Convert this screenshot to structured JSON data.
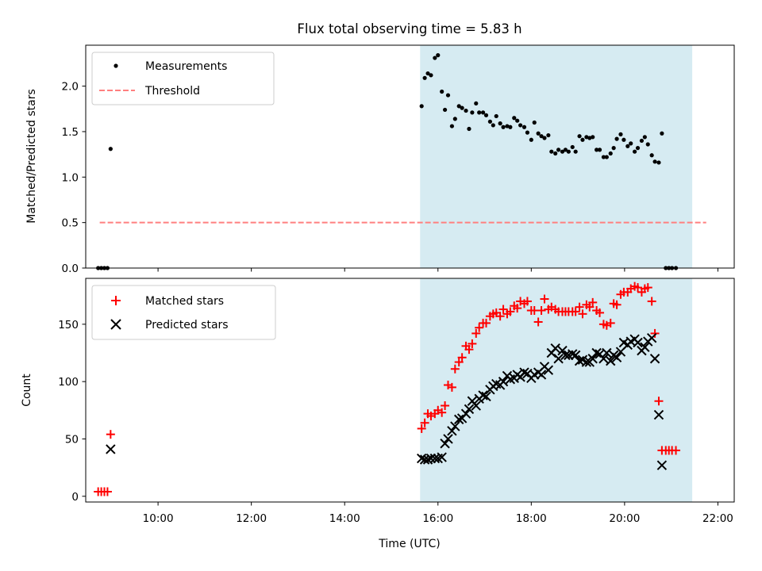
{
  "chart_data": [
    {
      "type": "scatter",
      "title": "Flux total observing time = 5.83 h",
      "ylabel": "Matched/Predicted stars",
      "xlim": [
        "08:27",
        "22:21"
      ],
      "ylim": [
        0,
        2.45
      ],
      "yticks": [
        "0.0",
        "0.5",
        "1.0",
        "1.5",
        "2.0"
      ],
      "grid": false,
      "legend_position": "top-left",
      "highlight_span": {
        "start": "15:37",
        "end": "21:27",
        "color": "#add8e6"
      },
      "threshold": {
        "name": "Threshold",
        "value": 0.5,
        "x_start": "08:45",
        "x_end": "21:45",
        "color": "#ff7f7f"
      },
      "series": [
        {
          "name": "Measurements",
          "color": "#000000",
          "marker": "dot",
          "points": [
            [
              "08:43",
              0
            ],
            [
              "08:47",
              0
            ],
            [
              "08:51",
              0
            ],
            [
              "08:55",
              0
            ],
            [
              "08:59",
              1.31
            ],
            [
              "15:39",
              1.78
            ],
            [
              "15:43",
              2.09
            ],
            [
              "15:47",
              2.14
            ],
            [
              "15:51",
              2.12
            ],
            [
              "15:56",
              2.31
            ],
            [
              "16:00",
              2.34
            ],
            [
              "16:05",
              1.94
            ],
            [
              "16:09",
              1.74
            ],
            [
              "16:13",
              1.9
            ],
            [
              "16:18",
              1.56
            ],
            [
              "16:22",
              1.64
            ],
            [
              "16:27",
              1.78
            ],
            [
              "16:31",
              1.76
            ],
            [
              "16:36",
              1.73
            ],
            [
              "16:40",
              1.53
            ],
            [
              "16:44",
              1.71
            ],
            [
              "16:49",
              1.81
            ],
            [
              "16:53",
              1.71
            ],
            [
              "16:58",
              1.71
            ],
            [
              "17:02",
              1.68
            ],
            [
              "17:07",
              1.61
            ],
            [
              "17:11",
              1.57
            ],
            [
              "17:15",
              1.67
            ],
            [
              "17:20",
              1.59
            ],
            [
              "17:24",
              1.55
            ],
            [
              "17:29",
              1.56
            ],
            [
              "17:33",
              1.55
            ],
            [
              "17:38",
              1.65
            ],
            [
              "17:42",
              1.62
            ],
            [
              "17:46",
              1.57
            ],
            [
              "17:51",
              1.55
            ],
            [
              "17:55",
              1.49
            ],
            [
              "18:00",
              1.41
            ],
            [
              "18:04",
              1.6
            ],
            [
              "18:09",
              1.48
            ],
            [
              "18:13",
              1.45
            ],
            [
              "18:17",
              1.43
            ],
            [
              "18:22",
              1.46
            ],
            [
              "18:26",
              1.28
            ],
            [
              "18:31",
              1.26
            ],
            [
              "18:35",
              1.3
            ],
            [
              "18:40",
              1.28
            ],
            [
              "18:44",
              1.3
            ],
            [
              "18:48",
              1.28
            ],
            [
              "18:53",
              1.33
            ],
            [
              "18:57",
              1.28
            ],
            [
              "19:02",
              1.45
            ],
            [
              "19:06",
              1.41
            ],
            [
              "19:11",
              1.44
            ],
            [
              "19:15",
              1.43
            ],
            [
              "19:19",
              1.44
            ],
            [
              "19:24",
              1.3
            ],
            [
              "19:28",
              1.3
            ],
            [
              "19:33",
              1.22
            ],
            [
              "19:37",
              1.22
            ],
            [
              "19:42",
              1.26
            ],
            [
              "19:46",
              1.32
            ],
            [
              "19:50",
              1.42
            ],
            [
              "19:55",
              1.47
            ],
            [
              "19:59",
              1.41
            ],
            [
              "20:04",
              1.34
            ],
            [
              "20:08",
              1.37
            ],
            [
              "20:13",
              1.28
            ],
            [
              "20:17",
              1.32
            ],
            [
              "20:22",
              1.4
            ],
            [
              "20:26",
              1.44
            ],
            [
              "20:30",
              1.36
            ],
            [
              "20:35",
              1.24
            ],
            [
              "20:39",
              1.17
            ],
            [
              "20:44",
              1.16
            ],
            [
              "20:48",
              1.48
            ],
            [
              "20:53",
              0
            ],
            [
              "20:57",
              0
            ],
            [
              "21:01",
              0
            ],
            [
              "21:06",
              0
            ]
          ]
        }
      ]
    },
    {
      "type": "scatter",
      "xlabel": "Time (UTC)",
      "ylabel": "Count",
      "xlim": [
        "08:27",
        "22:21"
      ],
      "ylim": [
        -5,
        190
      ],
      "yticks": [
        "0",
        "50",
        "100",
        "150"
      ],
      "xticks": [
        "10:00",
        "12:00",
        "14:00",
        "16:00",
        "18:00",
        "20:00",
        "22:00"
      ],
      "grid": false,
      "legend_position": "top-left",
      "highlight_span": {
        "start": "15:37",
        "end": "21:27",
        "color": "#add8e6"
      },
      "series": [
        {
          "name": "Matched stars",
          "color": "#ff0000",
          "marker": "plus",
          "points": [
            [
              "08:43",
              4
            ],
            [
              "08:47",
              4
            ],
            [
              "08:51",
              4
            ],
            [
              "08:55",
              4
            ],
            [
              "08:59",
              54
            ],
            [
              "15:39",
              59
            ],
            [
              "15:43",
              64
            ],
            [
              "15:47",
              72
            ],
            [
              "15:51",
              70
            ],
            [
              "15:56",
              72
            ],
            [
              "16:00",
              75
            ],
            [
              "16:05",
              73
            ],
            [
              "16:09",
              79
            ],
            [
              "16:13",
              97
            ],
            [
              "16:18",
              95
            ],
            [
              "16:22",
              111
            ],
            [
              "16:27",
              117
            ],
            [
              "16:31",
              121
            ],
            [
              "16:36",
              131
            ],
            [
              "16:40",
              128
            ],
            [
              "16:44",
              133
            ],
            [
              "16:49",
              142
            ],
            [
              "16:53",
              147
            ],
            [
              "16:58",
              151
            ],
            [
              "17:02",
              151
            ],
            [
              "17:07",
              157
            ],
            [
              "17:11",
              159
            ],
            [
              "17:15",
              160
            ],
            [
              "17:20",
              157
            ],
            [
              "17:24",
              163
            ],
            [
              "17:29",
              159
            ],
            [
              "17:33",
              161
            ],
            [
              "17:38",
              166
            ],
            [
              "17:42",
              164
            ],
            [
              "17:46",
              170
            ],
            [
              "17:51",
              168
            ],
            [
              "17:55",
              170
            ],
            [
              "18:00",
              162
            ],
            [
              "18:04",
              162
            ],
            [
              "18:09",
              152
            ],
            [
              "18:13",
              162
            ],
            [
              "18:17",
              172
            ],
            [
              "18:22",
              163
            ],
            [
              "18:26",
              165
            ],
            [
              "18:31",
              163
            ],
            [
              "18:35",
              161
            ],
            [
              "18:40",
              161
            ],
            [
              "18:44",
              161
            ],
            [
              "18:48",
              161
            ],
            [
              "18:53",
              161
            ],
            [
              "18:57",
              161
            ],
            [
              "19:02",
              165
            ],
            [
              "19:06",
              159
            ],
            [
              "19:11",
              167
            ],
            [
              "19:15",
              165
            ],
            [
              "19:19",
              169
            ],
            [
              "19:24",
              162
            ],
            [
              "19:28",
              160
            ],
            [
              "19:33",
              150
            ],
            [
              "19:37",
              149
            ],
            [
              "19:42",
              151
            ],
            [
              "19:46",
              168
            ],
            [
              "19:50",
              167
            ],
            [
              "19:55",
              176
            ],
            [
              "19:59",
              178
            ],
            [
              "20:04",
              178
            ],
            [
              "20:08",
              181
            ],
            [
              "20:13",
              183
            ],
            [
              "20:17",
              182
            ],
            [
              "20:22",
              178
            ],
            [
              "20:26",
              181
            ],
            [
              "20:30",
              182
            ],
            [
              "20:35",
              170
            ],
            [
              "20:39",
              142
            ],
            [
              "20:44",
              83
            ],
            [
              "20:48",
              40
            ],
            [
              "20:53",
              40
            ],
            [
              "20:57",
              40
            ],
            [
              "21:01",
              40
            ],
            [
              "21:06",
              40
            ]
          ]
        },
        {
          "name": "Predicted stars",
          "color": "#000000",
          "marker": "x",
          "points": [
            [
              "08:59",
              41
            ],
            [
              "15:39",
              33
            ],
            [
              "15:43",
              32
            ],
            [
              "15:47",
              32
            ],
            [
              "15:51",
              33
            ],
            [
              "15:56",
              33
            ],
            [
              "16:00",
              33
            ],
            [
              "16:05",
              34
            ],
            [
              "16:09",
              46
            ],
            [
              "16:13",
              50
            ],
            [
              "16:18",
              57
            ],
            [
              "16:22",
              61
            ],
            [
              "16:27",
              67
            ],
            [
              "16:31",
              68
            ],
            [
              "16:36",
              72
            ],
            [
              "16:40",
              76
            ],
            [
              "16:44",
              83
            ],
            [
              "16:49",
              79
            ],
            [
              "16:53",
              85
            ],
            [
              "16:58",
              88
            ],
            [
              "17:02",
              87
            ],
            [
              "17:07",
              93
            ],
            [
              "17:11",
              96
            ],
            [
              "17:15",
              98
            ],
            [
              "17:20",
              97
            ],
            [
              "17:24",
              100
            ],
            [
              "17:29",
              105
            ],
            [
              "17:33",
              102
            ],
            [
              "17:38",
              103
            ],
            [
              "17:42",
              106
            ],
            [
              "17:46",
              104
            ],
            [
              "17:51",
              108
            ],
            [
              "17:55",
              107
            ],
            [
              "18:00",
              103
            ],
            [
              "18:04",
              106
            ],
            [
              "18:09",
              108
            ],
            [
              "18:13",
              106
            ],
            [
              "18:17",
              113
            ],
            [
              "18:22",
              110
            ],
            [
              "18:26",
              125
            ],
            [
              "18:31",
              129
            ],
            [
              "18:35",
              120
            ],
            [
              "18:40",
              127
            ],
            [
              "18:44",
              123
            ],
            [
              "18:48",
              123
            ],
            [
              "18:53",
              124
            ],
            [
              "18:57",
              123
            ],
            [
              "19:02",
              118
            ],
            [
              "19:06",
              119
            ],
            [
              "19:11",
              117
            ],
            [
              "19:15",
              117
            ],
            [
              "19:19",
              120
            ],
            [
              "19:24",
              125
            ],
            [
              "19:28",
              124
            ],
            [
              "19:33",
              120
            ],
            [
              "19:37",
              125
            ],
            [
              "19:42",
              118
            ],
            [
              "19:46",
              123
            ],
            [
              "19:50",
              121
            ],
            [
              "19:55",
              126
            ],
            [
              "19:59",
              134
            ],
            [
              "20:04",
              132
            ],
            [
              "20:08",
              135
            ],
            [
              "20:13",
              137
            ],
            [
              "20:17",
              134
            ],
            [
              "20:22",
              127
            ],
            [
              "20:26",
              130
            ],
            [
              "20:30",
              135
            ],
            [
              "20:35",
              138
            ],
            [
              "20:39",
              120
            ],
            [
              "20:44",
              71
            ],
            [
              "20:48",
              27
            ]
          ]
        }
      ]
    }
  ]
}
